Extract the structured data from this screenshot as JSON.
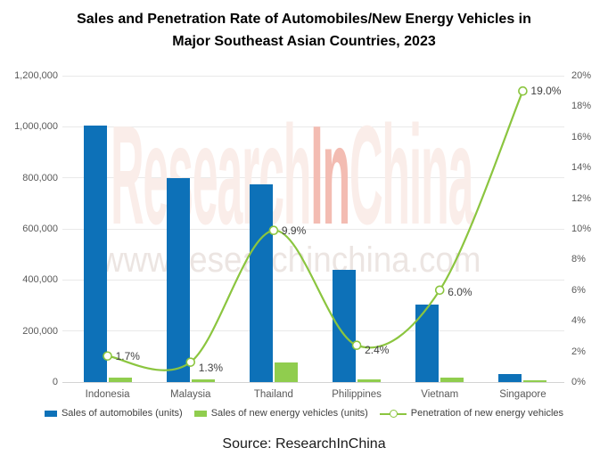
{
  "title": {
    "line1": "Sales and Penetration Rate of Automobiles/New Energy Vehicles in",
    "line2": "Major Southeast Asian Countries, 2023"
  },
  "source": "Source: ResearchInChina",
  "watermark": {
    "part1": "Research",
    "part2": "In",
    "part3": "China",
    "url": "www.researchinchina.com",
    "color_light": "#faede9",
    "color_accent": "#f3bcb2",
    "url_color": "#ece5e2"
  },
  "colors": {
    "automobile_bar": "#0d71b8",
    "nev_bar": "#90cd4e",
    "penetration_line": "#8bc53f",
    "axis_text": "#595959",
    "data_label_text": "#404040",
    "gridline": "#e9e9e9",
    "axis_line": "#d4d4d4"
  },
  "chart_data": {
    "type": "bar",
    "subtype": "bar+line combo, dual axis",
    "title": "Sales and Penetration Rate of Automobiles/New Energy Vehicles in Major Southeast Asian Countries, 2023",
    "categories": [
      "Indonesia",
      "Malaysia",
      "Thailand",
      "Philippines",
      "Vietnam",
      "Singapore"
    ],
    "series": [
      {
        "name": "Sales of automobiles (units)",
        "type": "bar",
        "axis": "left",
        "color": "#0d71b8",
        "values": [
          1005000,
          800000,
          775000,
          440000,
          302000,
          33000
        ]
      },
      {
        "name": "Sales of new energy vehicles (units)",
        "type": "bar",
        "axis": "left",
        "color": "#90cd4e",
        "values": [
          17000,
          10000,
          76000,
          10000,
          18000,
          6000
        ]
      },
      {
        "name": "Penetration of new energy vehicles",
        "type": "line",
        "axis": "right",
        "color": "#8bc53f",
        "values": [
          1.7,
          1.3,
          9.9,
          2.4,
          6.0,
          19.0
        ],
        "point_labels": [
          "1.7%",
          "1.3%",
          "9.9%",
          "2.4%",
          "6.0%",
          "19.0%"
        ]
      }
    ],
    "left_axis": {
      "min": 0,
      "max": 1200000,
      "ticks": [
        "0",
        "200,000",
        "400,000",
        "600,000",
        "800,000",
        "1,000,000",
        "1,200,000"
      ]
    },
    "right_axis": {
      "min": 0,
      "max": 20,
      "ticks": [
        "0%",
        "2%",
        "4%",
        "6%",
        "8%",
        "10%",
        "12%",
        "14%",
        "16%",
        "18%",
        "20%"
      ]
    },
    "grid": true,
    "legend_position": "bottom",
    "point_label_dy": [
      0,
      6,
      0,
      5,
      2,
      0
    ]
  }
}
